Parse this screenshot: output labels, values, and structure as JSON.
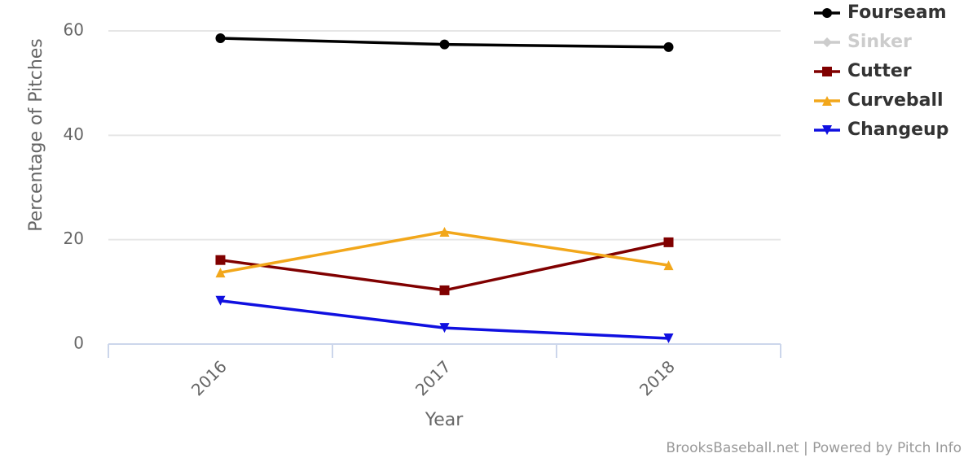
{
  "chart_data": {
    "type": "line",
    "y_label": "Percentage of Pitches",
    "x_label": "Year",
    "credits": "BrooksBaseball.net | Powered by Pitch Info",
    "categories": [
      "2016",
      "2017",
      "2018"
    ],
    "ylim": [
      0,
      60
    ],
    "yticks": [
      0,
      20,
      40,
      60
    ],
    "grid": true,
    "legend": "right",
    "series": [
      {
        "name": "Fourseam",
        "color": "#000000",
        "marker": "circle",
        "visible": true,
        "values": [
          58.6,
          57.4,
          56.9
        ]
      },
      {
        "name": "Sinker",
        "color": "#cccccc",
        "marker": "diamond",
        "visible": false,
        "values": [
          null,
          null,
          null
        ]
      },
      {
        "name": "Cutter",
        "color": "#800000",
        "marker": "square",
        "visible": true,
        "values": [
          16.1,
          10.3,
          19.5
        ]
      },
      {
        "name": "Curveball",
        "color": "#f2a71b",
        "marker": "triangle",
        "visible": true,
        "values": [
          13.7,
          21.5,
          15.1
        ]
      },
      {
        "name": "Changeup",
        "color": "#1010e0",
        "marker": "triangle-down",
        "visible": true,
        "values": [
          8.3,
          3.1,
          1.1
        ]
      }
    ]
  }
}
